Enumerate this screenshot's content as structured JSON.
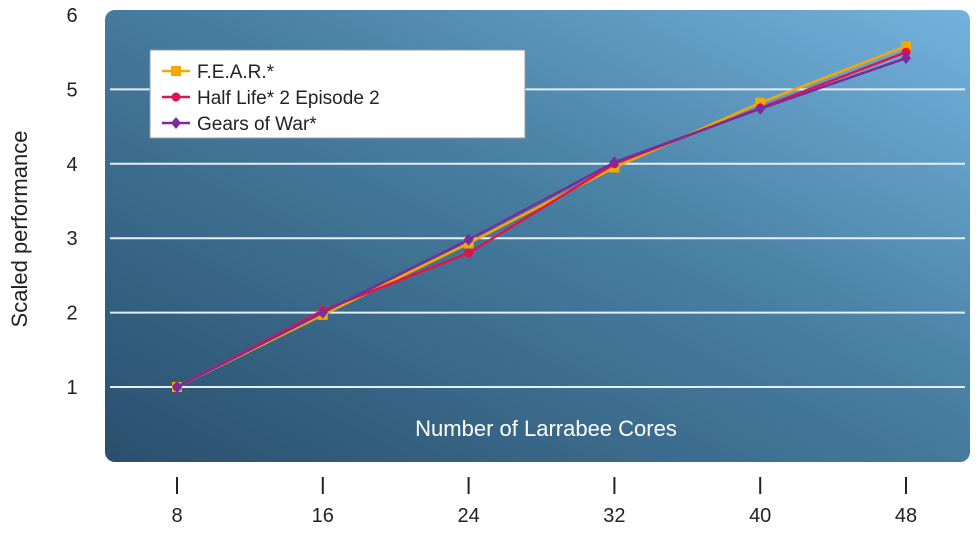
{
  "chart_data": {
    "type": "line",
    "xlabel": "Number of Larrabee Cores",
    "ylabel": "Scaled performance",
    "x": [
      8,
      16,
      24,
      32,
      40,
      48
    ],
    "xlim": [
      8,
      48
    ],
    "ylim": [
      0.6,
      6
    ],
    "yticks": [
      1,
      2,
      3,
      4,
      5,
      6
    ],
    "grid": true,
    "legend_position": "top-left",
    "series": [
      {
        "name": "F.E.A.R.*",
        "color": "#f5a800",
        "marker": "square",
        "values": [
          1.0,
          1.97,
          2.93,
          3.95,
          4.82,
          5.58
        ]
      },
      {
        "name": "Half Life* 2 Episode 2",
        "color": "#e0144c",
        "marker": "circle",
        "values": [
          1.0,
          2.03,
          2.8,
          4.0,
          4.75,
          5.5
        ]
      },
      {
        "name": "Gears of War*",
        "color": "#7a2b9c",
        "marker": "diamond",
        "values": [
          1.0,
          2.0,
          2.98,
          4.02,
          4.74,
          5.42
        ]
      }
    ]
  }
}
